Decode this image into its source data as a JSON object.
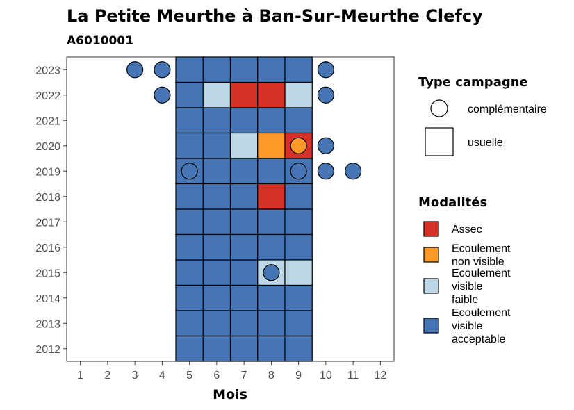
{
  "chart_data": {
    "type": "heatmap",
    "title": "La Petite Meurthe à Ban-Sur-Meurthe Clefcy",
    "subtitle": "A6010001",
    "xlabel": "Mois",
    "ylabel": "",
    "x_ticks": [
      1,
      2,
      3,
      4,
      5,
      6,
      7,
      8,
      9,
      10,
      11,
      12
    ],
    "y_ticks": [
      2012,
      2013,
      2014,
      2015,
      2016,
      2017,
      2018,
      2019,
      2020,
      2021,
      2022,
      2023
    ],
    "xlim": [
      0.5,
      12.5
    ],
    "ylim": [
      2011.5,
      2023.5
    ],
    "grid": false,
    "legend_position": "right",
    "modalities": [
      {
        "key": "assec",
        "label_lines": [
          "Assec"
        ],
        "color": "#d73027"
      },
      {
        "key": "non_visible",
        "label_lines": [
          "Ecoulement",
          "non visible"
        ],
        "color": "#fe9929"
      },
      {
        "key": "faible",
        "label_lines": [
          "Ecoulement",
          "visible",
          "faible"
        ],
        "color": "#bdd7e7"
      },
      {
        "key": "acceptable",
        "label_lines": [
          "Ecoulement",
          "visible",
          "acceptable"
        ],
        "color": "#4575b4"
      }
    ],
    "campaign_types": [
      {
        "key": "complementaire",
        "label": "complémentaire",
        "shape": "circle"
      },
      {
        "key": "usuelle",
        "label": "usuelle",
        "shape": "square"
      }
    ],
    "legend_titles": {
      "campaign": "Type campagne",
      "modalities": "Modalités"
    },
    "usual_campaigns": [
      {
        "year": 2023,
        "months": [
          "acceptable",
          "acceptable",
          "acceptable",
          "acceptable",
          "acceptable"
        ]
      },
      {
        "year": 2022,
        "months": [
          "acceptable",
          "faible",
          "assec",
          "assec",
          "faible"
        ]
      },
      {
        "year": 2021,
        "months": [
          "acceptable",
          "acceptable",
          "acceptable",
          "acceptable",
          "acceptable"
        ]
      },
      {
        "year": 2020,
        "months": [
          "acceptable",
          "acceptable",
          "faible",
          "non_visible",
          "assec"
        ]
      },
      {
        "year": 2019,
        "months": [
          "acceptable",
          "acceptable",
          "acceptable",
          "acceptable",
          "acceptable"
        ]
      },
      {
        "year": 2018,
        "months": [
          "acceptable",
          "acceptable",
          "acceptable",
          "assec",
          "acceptable"
        ]
      },
      {
        "year": 2017,
        "months": [
          "acceptable",
          "acceptable",
          "acceptable",
          "acceptable",
          "acceptable"
        ]
      },
      {
        "year": 2016,
        "months": [
          "acceptable",
          "acceptable",
          "acceptable",
          "acceptable",
          "acceptable"
        ]
      },
      {
        "year": 2015,
        "months": [
          "acceptable",
          "acceptable",
          "acceptable",
          "faible",
          "faible"
        ]
      },
      {
        "year": 2014,
        "months": [
          "acceptable",
          "acceptable",
          "acceptable",
          "acceptable",
          "acceptable"
        ]
      },
      {
        "year": 2013,
        "months": [
          "acceptable",
          "acceptable",
          "acceptable",
          "acceptable",
          "acceptable"
        ]
      },
      {
        "year": 2012,
        "months": [
          "acceptable",
          "acceptable",
          "acceptable",
          "acceptable",
          "acceptable"
        ]
      }
    ],
    "usual_months": [
      5,
      6,
      7,
      8,
      9
    ],
    "complementary_campaigns": [
      {
        "year": 2023,
        "month": 3,
        "modality": "acceptable"
      },
      {
        "year": 2023,
        "month": 4,
        "modality": "acceptable"
      },
      {
        "year": 2023,
        "month": 10,
        "modality": "acceptable"
      },
      {
        "year": 2022,
        "month": 4,
        "modality": "acceptable"
      },
      {
        "year": 2022,
        "month": 10,
        "modality": "acceptable"
      },
      {
        "year": 2020,
        "month": 9,
        "modality": "non_visible"
      },
      {
        "year": 2020,
        "month": 10,
        "modality": "acceptable"
      },
      {
        "year": 2019,
        "month": 5,
        "modality": "acceptable"
      },
      {
        "year": 2019,
        "month": 9,
        "modality": "acceptable"
      },
      {
        "year": 2019,
        "month": 10,
        "modality": "acceptable"
      },
      {
        "year": 2019,
        "month": 11,
        "modality": "acceptable"
      },
      {
        "year": 2015,
        "month": 8,
        "modality": "acceptable"
      }
    ]
  }
}
